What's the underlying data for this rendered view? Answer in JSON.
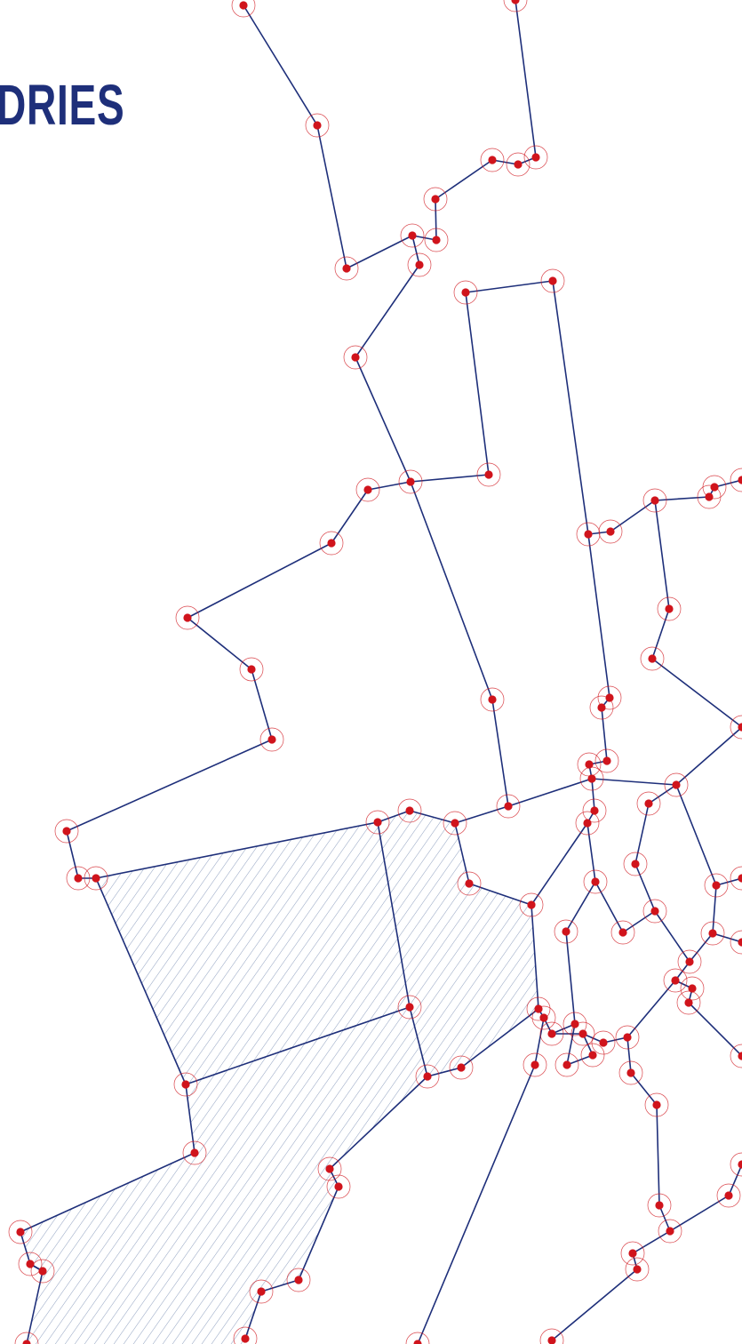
{
  "title": "DRIES",
  "colors": {
    "line": "#1e2f7a",
    "node": "#d0141c",
    "node_ring": "#d0141c",
    "hatch": "#8fa0c0",
    "background": "#ffffff"
  }
}
